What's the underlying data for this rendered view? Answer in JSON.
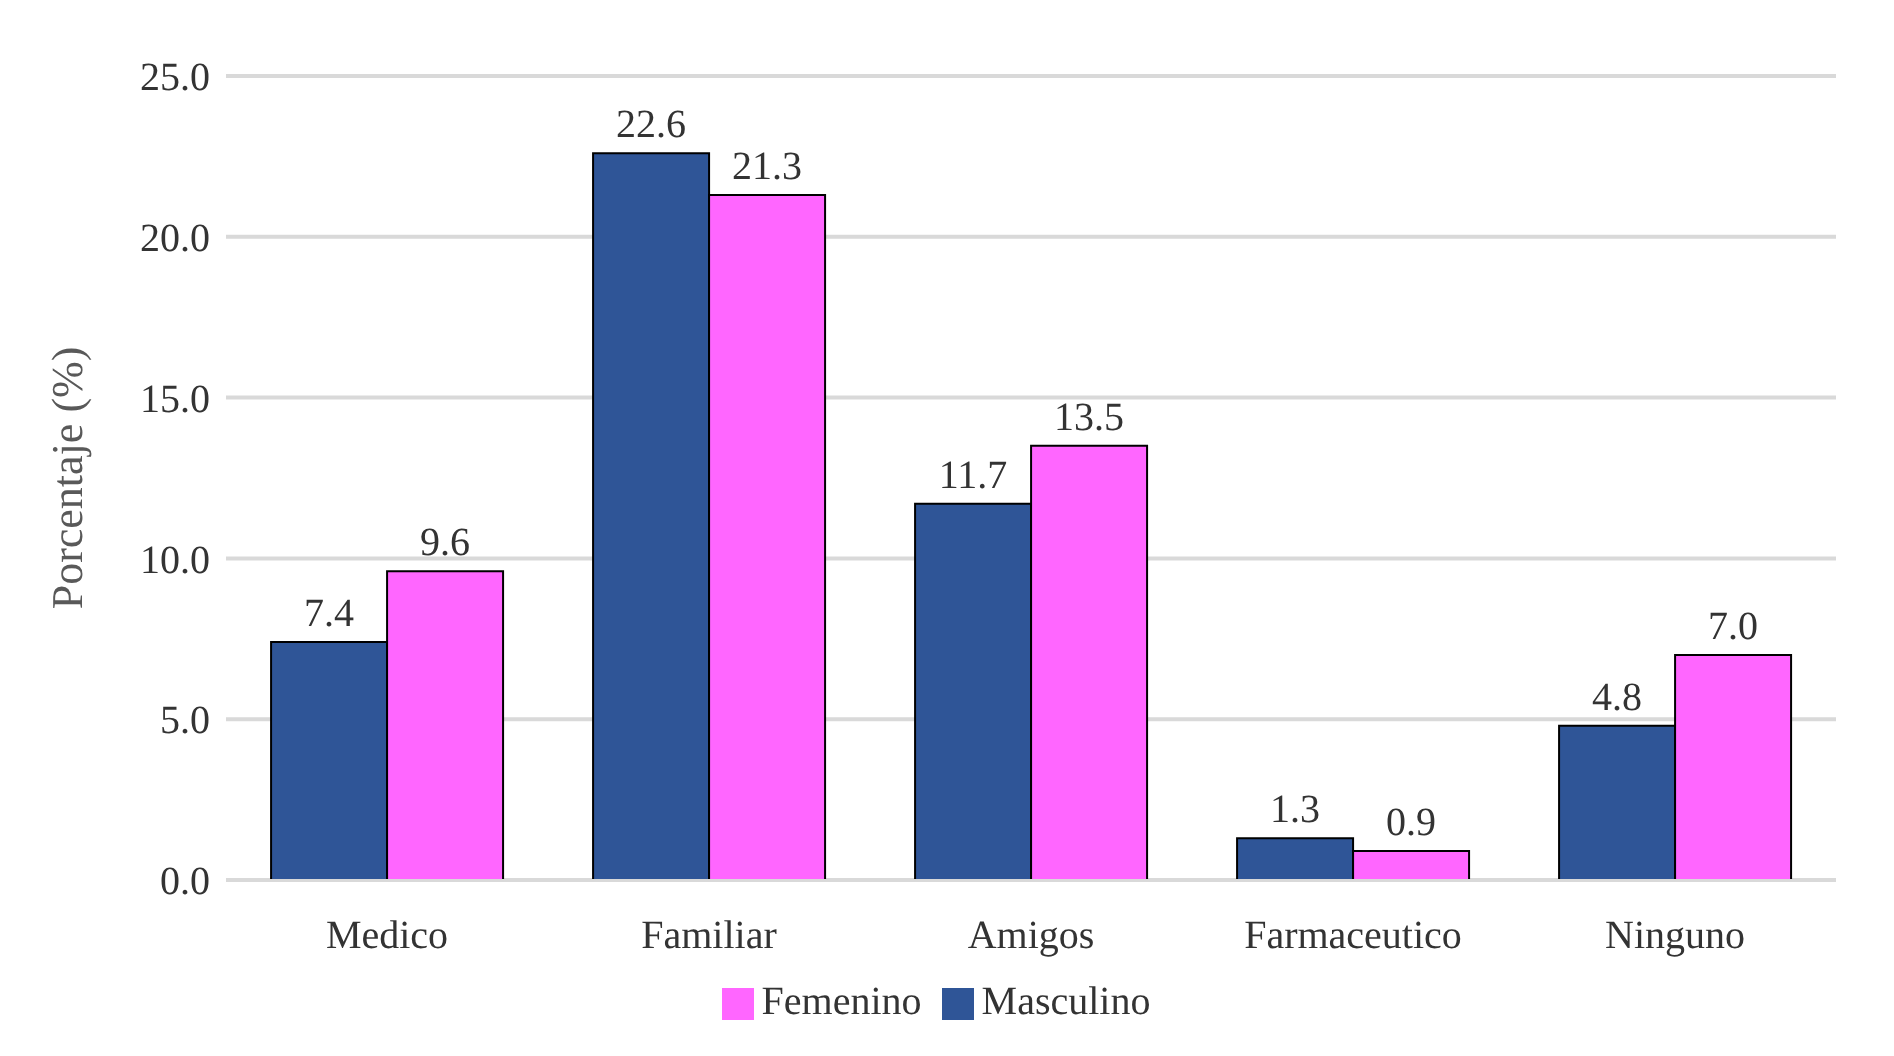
{
  "chart_data": {
    "type": "bar",
    "ylabel": "Porcentaje (%)",
    "categories": [
      "Medico",
      "Familiar",
      "Amigos",
      "Farmaceutico",
      "Ninguno"
    ],
    "series": [
      {
        "name": "Masculino",
        "color": "#2f5597",
        "values": [
          7.4,
          22.6,
          11.7,
          1.3,
          4.8
        ]
      },
      {
        "name": "Femenino",
        "color": "#ff66ff",
        "values": [
          9.6,
          21.3,
          13.5,
          0.9,
          7.0
        ]
      }
    ],
    "ylim": [
      0,
      25
    ],
    "yticks": [
      {
        "value": 0,
        "label": "0.0"
      },
      {
        "value": 5,
        "label": "5.0"
      },
      {
        "value": 10,
        "label": "10.0"
      },
      {
        "value": 15,
        "label": "15.0"
      },
      {
        "value": 20,
        "label": "20.0"
      },
      {
        "value": 25,
        "label": "25.0"
      }
    ],
    "value_labels": [
      [
        "7.4",
        "22.6",
        "11.7",
        "1.3",
        "4.8"
      ],
      [
        "9.6",
        "21.3",
        "13.5",
        "0.9",
        "7.0"
      ]
    ],
    "grid": "y",
    "legend": "bottom"
  }
}
